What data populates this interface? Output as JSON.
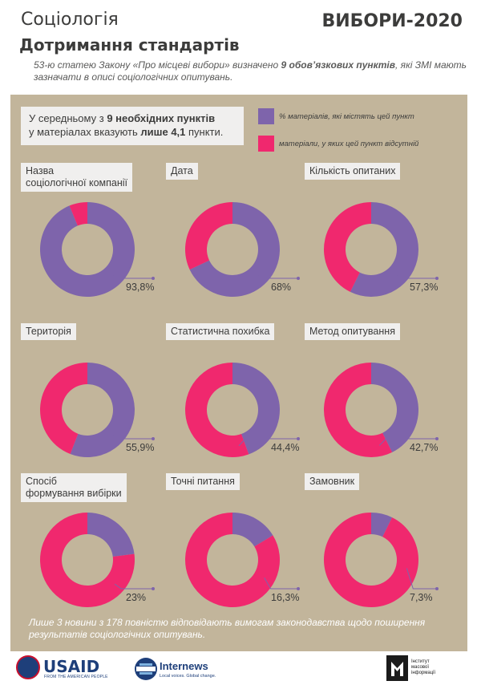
{
  "header": {
    "topic": "Соціологія",
    "project": "ВИБОРИ-2020",
    "title": "Дотримання стандартів",
    "subtitle_part1": "53-ю статею Закону «Про місцеві вибори» визначено ",
    "subtitle_bold": "9 обов’язкових пунктів",
    "subtitle_part2": ", які ЗМІ мають зазначати в описі соціологічних опитувань."
  },
  "summary": {
    "line1_prefix": "У середньому з ",
    "line1_bold": "9 необхідних пунктів",
    "line2_prefix": "у матеріалах вказують ",
    "line2_bold": "лише 4,1",
    "line2_suffix": " пункти."
  },
  "colors": {
    "present": "#7e64ab",
    "absent": "#f0286e",
    "panel": "#c2b59b",
    "label_bg": "#f0efee"
  },
  "chart_data": {
    "type": "pie",
    "variant": "donut",
    "legend": [
      "% матеріалів, які містять цей пункт",
      "матеріали, у яких цей пункт відсутній"
    ],
    "items": [
      {
        "label": "Назва\nсоціологічної компанії",
        "present": 93.8,
        "value_label": "93,8%"
      },
      {
        "label": "Дата",
        "present": 68.0,
        "value_label": "68%"
      },
      {
        "label": "Кількість опитаних",
        "present": 57.3,
        "value_label": "57,3%"
      },
      {
        "label": "Територія",
        "present": 55.9,
        "value_label": "55,9%"
      },
      {
        "label": "Статистична похибка",
        "present": 44.4,
        "value_label": "44,4%"
      },
      {
        "label": "Метод опитування",
        "present": 42.7,
        "value_label": "42,7%"
      },
      {
        "label": "Спосіб\nформування вибірки",
        "present": 23.0,
        "value_label": "23%"
      },
      {
        "label": "Точні питання",
        "present": 16.3,
        "value_label": "16,3%"
      },
      {
        "label": "Замовник",
        "present": 7.3,
        "value_label": "7,3%"
      }
    ]
  },
  "footnote": "Лише 3 новини з 178 повністю відповідають вимогам законодавства щодо поширення результатів соціологічних опитувань.",
  "footer": {
    "usaid": "USAID",
    "usaid_tagline": "FROM THE AMERICAN PEOPLE",
    "internews": "Internews",
    "internews_tagline": "Local voices. Global change.",
    "imi_line1": "Інститут",
    "imi_line2": "масової",
    "imi_line3": "інформації"
  }
}
